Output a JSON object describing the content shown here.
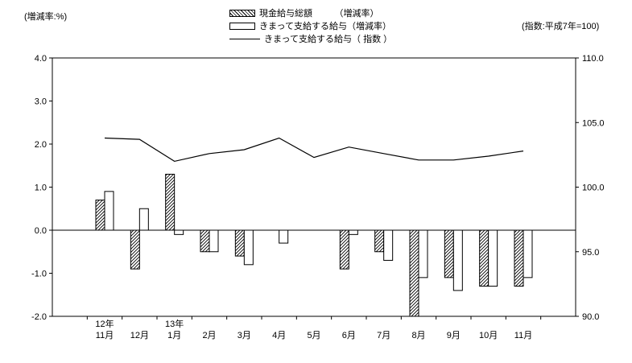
{
  "labels": {
    "left_axis_unit": "(増減率:%)",
    "right_axis_unit": "(指数:平成7年=100)"
  },
  "legend": {
    "items": [
      {
        "label": "現金給与総額　　　（増減率）",
        "swatch": "hatched-bar"
      },
      {
        "label": "きまって支給する給与（増減率）",
        "swatch": "white-bar"
      },
      {
        "label": "きまって支給する給与（ 指数 ）",
        "swatch": "line"
      }
    ]
  },
  "chart_data": {
    "type": "bar",
    "subtype": "bar+line combo",
    "categories": [
      "11月",
      "12月",
      "1月",
      "2月",
      "3月",
      "4月",
      "5月",
      "6月",
      "7月",
      "8月",
      "9月",
      "10月",
      "11月"
    ],
    "year_labels": [
      "12年",
      "",
      "13年",
      "",
      "",
      "",
      "",
      "",
      "",
      "",
      "",
      "",
      ""
    ],
    "series": [
      {
        "name": "現金給与総額（増減率）",
        "type": "bar",
        "style": "hatched",
        "axis": "left",
        "values": [
          0.7,
          -0.9,
          1.3,
          -0.5,
          -0.6,
          0,
          0,
          -0.9,
          -0.5,
          -2.0,
          -1.1,
          -1.3,
          -1.3
        ]
      },
      {
        "name": "きまって支給する給与（増減率）",
        "type": "bar",
        "style": "white",
        "axis": "left",
        "values": [
          0.9,
          0.5,
          -0.1,
          -0.5,
          -0.8,
          -0.3,
          0,
          -0.1,
          -0.7,
          -1.1,
          -1.4,
          -1.3,
          -1.1
        ]
      },
      {
        "name": "きまって支給する給与（指数）",
        "type": "line",
        "axis": "right",
        "values": [
          103.8,
          103.7,
          102.0,
          102.6,
          102.9,
          103.8,
          102.3,
          103.1,
          102.6,
          102.1,
          102.1,
          102.4,
          102.8
        ]
      }
    ],
    "left_axis": {
      "min": -2.0,
      "max": 4.0,
      "step": 1.0,
      "tick_labels": [
        "4.0",
        "3.0",
        "2.0",
        "1.0",
        "0.0",
        "-1.0",
        "-2.0"
      ]
    },
    "right_axis": {
      "min": 90.0,
      "max": 110.0,
      "step": 5.0,
      "tick_labels": [
        "110.0",
        "105.0",
        "100.0",
        "95.0",
        "90.0"
      ]
    },
    "grid": "none (zero line only)",
    "legend_position": "top-center"
  }
}
